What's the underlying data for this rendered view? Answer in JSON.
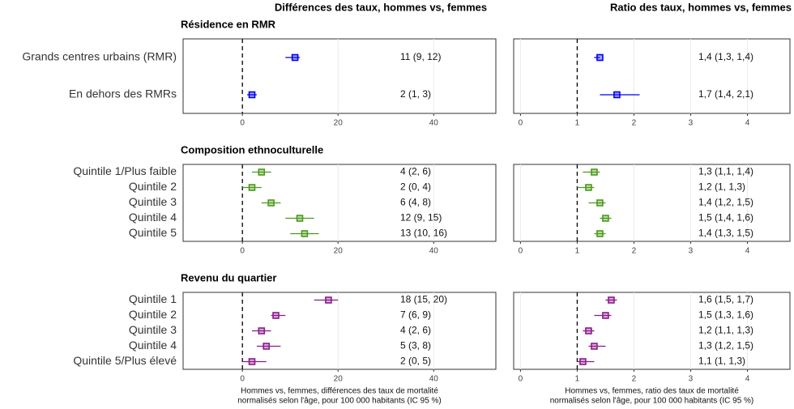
{
  "chart_data": [
    {
      "type": "forest",
      "column_title": "Différences des taux, hommes vs, femmes",
      "title": "Résidence en RMR",
      "categories": [
        "Grands centres urbains (RMR)",
        "En dehors des RMRs"
      ],
      "values": [
        11,
        2
      ],
      "lower": [
        9,
        1
      ],
      "upper": [
        12,
        3
      ],
      "value_labels": [
        "11 (9, 12)",
        "2 (1, 3)"
      ],
      "color": "#0000ee",
      "xlim": [
        -12.4,
        53
      ],
      "xticks": [
        0,
        20,
        40
      ],
      "ref": 0,
      "grid": true
    },
    {
      "type": "forest",
      "column_title": "Ratio des taux, hommes vs, femmes",
      "categories": [
        "Grands centres urbains (RMR)",
        "En dehors des RMRs"
      ],
      "values": [
        1.4,
        1.7
      ],
      "lower": [
        1.3,
        1.4
      ],
      "upper": [
        1.4,
        2.1
      ],
      "value_labels": [
        "1,4 (1,3, 1,4)",
        "1,7 (1,4, 2,1)"
      ],
      "color": "#0000ee",
      "xlim": [
        -0.12,
        4.75
      ],
      "xticks": [
        0,
        1,
        2,
        3,
        4
      ],
      "ref": 1,
      "grid": true
    },
    {
      "type": "forest",
      "title": "Composition ethnoculturelle",
      "categories": [
        "Quintile 1/Plus faible",
        "Quintile 2",
        "Quintile 3",
        "Quintile 4",
        "Quintile 5"
      ],
      "values": [
        4,
        2,
        6,
        12,
        13
      ],
      "lower": [
        2,
        0,
        4,
        9,
        10
      ],
      "upper": [
        6,
        4,
        8,
        15,
        16
      ],
      "value_labels": [
        "4 (2, 6)",
        "2 (0, 4)",
        "6 (4, 8)",
        "12 (9, 15)",
        "13 (10, 16)"
      ],
      "color": "#4a9a1a",
      "xlim": [
        -12.4,
        53
      ],
      "xticks": [
        0,
        20,
        40
      ],
      "ref": 0,
      "grid": true
    },
    {
      "type": "forest",
      "categories": [
        "Quintile 1/Plus faible",
        "Quintile 2",
        "Quintile 3",
        "Quintile 4",
        "Quintile 5"
      ],
      "values": [
        1.3,
        1.2,
        1.4,
        1.5,
        1.4
      ],
      "lower": [
        1.1,
        1,
        1.2,
        1.4,
        1.3
      ],
      "upper": [
        1.4,
        1.3,
        1.5,
        1.6,
        1.5
      ],
      "value_labels": [
        "1,3 (1,1, 1,4)",
        "1,2 (1, 1,3)",
        "1,4 (1,2, 1,5)",
        "1,5 (1,4, 1,6)",
        "1,4 (1,3, 1,5)"
      ],
      "color": "#4a9a1a",
      "xlim": [
        -0.12,
        4.75
      ],
      "xticks": [
        0,
        1,
        2,
        3,
        4
      ],
      "ref": 1,
      "grid": true
    },
    {
      "type": "forest",
      "title": "Revenu du quartier",
      "categories": [
        "Quintile 1",
        "Quintile 2",
        "Quintile 3",
        "Quintile 4",
        "Quintile 5/Plus élevé"
      ],
      "values": [
        18,
        7,
        4,
        5,
        2
      ],
      "lower": [
        15,
        6,
        2,
        3,
        0
      ],
      "upper": [
        20,
        9,
        6,
        8,
        5
      ],
      "value_labels": [
        "18 (15, 20)",
        "7 (6, 9)",
        "4 (2, 6)",
        "5 (3, 8)",
        "2 (0, 5)"
      ],
      "color": "#8b1a8b",
      "xlim": [
        -12.4,
        53
      ],
      "xticks": [
        0,
        20,
        40
      ],
      "ref": 0,
      "grid": true,
      "xlabel": [
        "Hommes vs, femmes, différences des taux de mortalité",
        "normalisés selon l'âge, pour 100 000 habitants (IC 95 %)"
      ]
    },
    {
      "type": "forest",
      "categories": [
        "Quintile 1",
        "Quintile 2",
        "Quintile 3",
        "Quintile 4",
        "Quintile 5/Plus élevé"
      ],
      "values": [
        1.6,
        1.5,
        1.2,
        1.3,
        1.1
      ],
      "lower": [
        1.5,
        1.3,
        1.1,
        1.2,
        1
      ],
      "upper": [
        1.7,
        1.6,
        1.3,
        1.5,
        1.3
      ],
      "value_labels": [
        "1,6 (1,5, 1,7)",
        "1,5 (1,3, 1,6)",
        "1,2 (1,1, 1,3)",
        "1,3 (1,2, 1,5)",
        "1,1 (1, 1,3)"
      ],
      "color": "#8b1a8b",
      "xlim": [
        -0.12,
        4.75
      ],
      "xticks": [
        0,
        1,
        2,
        3,
        4
      ],
      "ref": 1,
      "grid": true,
      "xlabel": [
        "Hommes vs, femmes, ratio des taux de mortalité",
        "normalisés selon l'âge, pour 100 000 habitants (IC 95 %)"
      ]
    }
  ]
}
